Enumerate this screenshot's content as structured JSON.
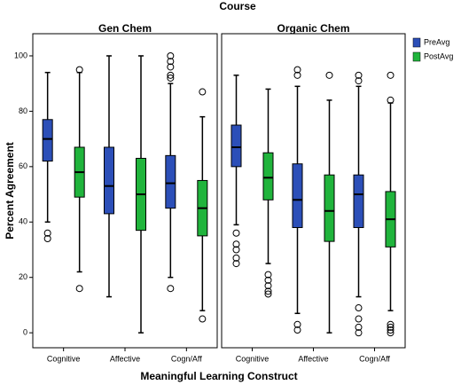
{
  "chart_data": {
    "type": "boxplot",
    "title": "Course",
    "y_label": "Percent Agreement",
    "x_label": "Meaningful Learning Construct",
    "panels": [
      "Gen Chem",
      "Organic Chem"
    ],
    "categories": [
      "Cognitive",
      "Affective",
      "Cogn/Aff"
    ],
    "ylim": [
      -5.4,
      108
    ],
    "yticks": [
      0,
      20,
      40,
      60,
      80,
      100
    ],
    "series": [
      {
        "name": "PreAvg",
        "color": "#2c4fb8",
        "boxes": [
          [
            {
              "whisker_low": 40,
              "q1": 62,
              "median": 70,
              "q3": 77,
              "whisker_high": 94,
              "outliers": [
                36,
                34
              ]
            },
            {
              "whisker_low": 13,
              "q1": 43,
              "median": 53,
              "q3": 67,
              "whisker_high": 100,
              "outliers": []
            },
            {
              "whisker_low": 20,
              "q1": 45,
              "median": 54,
              "q3": 64,
              "whisker_high": 90,
              "outliers": [
                100,
                98,
                96,
                93,
                92,
                16
              ]
            }
          ],
          [
            {
              "whisker_low": 39,
              "q1": 60,
              "median": 67,
              "q3": 75,
              "whisker_high": 93,
              "outliers": [
                36,
                32,
                30,
                27,
                25
              ]
            },
            {
              "whisker_low": 7,
              "q1": 38,
              "median": 48,
              "q3": 61,
              "whisker_high": 89,
              "outliers": [
                95,
                93,
                3,
                1
              ]
            },
            {
              "whisker_low": 13,
              "q1": 38,
              "median": 50,
              "q3": 57,
              "whisker_high": 89,
              "outliers": [
                93,
                91,
                9,
                5,
                2,
                0
              ]
            }
          ]
        ]
      },
      {
        "name": "PostAvg",
        "color": "#20b43c",
        "boxes": [
          [
            {
              "whisker_low": 22,
              "q1": 49,
              "median": 58,
              "q3": 67,
              "whisker_high": 94,
              "outliers": [
                95,
                16
              ]
            },
            {
              "whisker_low": 0,
              "q1": 37,
              "median": 50,
              "q3": 63,
              "whisker_high": 100,
              "outliers": []
            },
            {
              "whisker_low": 8,
              "q1": 35,
              "median": 45,
              "q3": 55,
              "whisker_high": 78,
              "outliers": [
                87,
                5
              ]
            }
          ],
          [
            {
              "whisker_low": 25,
              "q1": 48,
              "median": 56,
              "q3": 65,
              "whisker_high": 88,
              "outliers": [
                21,
                19,
                17,
                15,
                14
              ]
            },
            {
              "whisker_low": 0,
              "q1": 33,
              "median": 44,
              "q3": 57,
              "whisker_high": 84,
              "outliers": [
                93
              ]
            },
            {
              "whisker_low": 8,
              "q1": 31,
              "median": 41,
              "q3": 51,
              "whisker_high": 83,
              "outliers": [
                93,
                84,
                3,
                2,
                1,
                0
              ]
            }
          ]
        ]
      }
    ]
  }
}
